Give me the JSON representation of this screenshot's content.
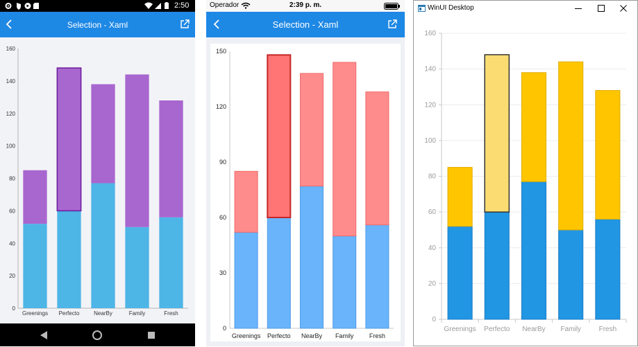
{
  "colors": {
    "android_bottom": "#4eb5e7",
    "android_top": "#a866cf",
    "android_selected_stroke": "#6a1b9a",
    "ios_bottom": "#6ab4fc",
    "ios_top": "#ff8c8c",
    "ios_top_selected": "#ff7474",
    "ios_selected_stroke": "#c62828",
    "win_bottom": "#2196e3",
    "win_top": "#ffc600",
    "win_top_selected": "#fbdc72",
    "win_selected_stroke": "#333333",
    "appbar_blue": "#1e88e5"
  },
  "android": {
    "status": {
      "time": "2:50"
    },
    "appbar": {
      "title": "Selection - Xaml"
    },
    "chart_data": {
      "type": "bar",
      "stacked": true,
      "categories": [
        "Greenings",
        "Perfecto",
        "NearBy",
        "Family",
        "Fresh"
      ],
      "series": [
        {
          "values": [
            52,
            60,
            77,
            50,
            56
          ]
        },
        {
          "values": [
            33,
            88,
            61,
            94,
            72
          ]
        }
      ],
      "selected_index": 1,
      "selected_series": 1,
      "ylim": [
        0,
        160
      ],
      "yticks": [
        0,
        20,
        40,
        60,
        80,
        100,
        120,
        140,
        160
      ]
    }
  },
  "ios": {
    "status": {
      "carrier": "Operador",
      "time": "2:39 p. m."
    },
    "appbar": {
      "title": "Selection - Xaml"
    },
    "chart_data": {
      "type": "bar",
      "stacked": true,
      "categories": [
        "Greenings",
        "Perfecto",
        "NearBy",
        "Family",
        "Fresh"
      ],
      "series": [
        {
          "values": [
            52,
            60,
            77,
            50,
            56
          ]
        },
        {
          "values": [
            33,
            88,
            61,
            94,
            72
          ]
        }
      ],
      "selected_index": 1,
      "selected_series": 1,
      "ylim": [
        0,
        150
      ],
      "yticks": [
        0,
        30,
        60,
        90,
        120,
        150
      ]
    }
  },
  "winui": {
    "window_title": "WinUI Desktop",
    "chart_data": {
      "type": "bar",
      "stacked": true,
      "categories": [
        "Greenings",
        "Perfecto",
        "NearBy",
        "Family",
        "Fresh"
      ],
      "series": [
        {
          "values": [
            52,
            60,
            77,
            50,
            56
          ]
        },
        {
          "values": [
            33,
            88,
            61,
            94,
            72
          ]
        }
      ],
      "selected_index": 1,
      "selected_series": 1,
      "ylim": [
        0,
        160
      ],
      "yticks": [
        0,
        20,
        40,
        60,
        80,
        100,
        120,
        140,
        160
      ]
    }
  }
}
